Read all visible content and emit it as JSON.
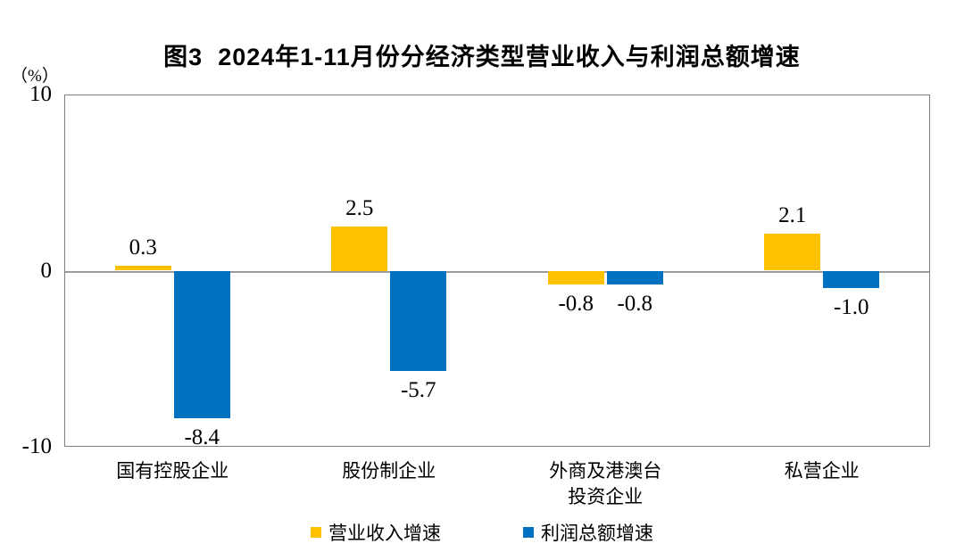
{
  "title": "图3  2024年1-11月份分经济类型营业收入与利润总额增速",
  "chart_data": {
    "type": "bar",
    "title": "图3  2024年1-11月份分经济类型营业收入与利润总额增速",
    "unit_label": "（%）",
    "categories": [
      "国有控股企业",
      "股份制企业",
      "外商及港澳台\n投资企业",
      "私营企业"
    ],
    "series": [
      {
        "key": "revenue-growth",
        "name": "营业收入增速",
        "color": "#FFC000",
        "values": [
          0.3,
          2.5,
          -0.8,
          2.1
        ],
        "labels": [
          "0.3",
          "2.5",
          "-0.8",
          "2.1"
        ]
      },
      {
        "key": "profit-growth",
        "name": "利润总额增速",
        "color": "#0070C0",
        "values": [
          -8.4,
          -5.7,
          -0.8,
          -1.0
        ],
        "labels": [
          "-8.4",
          "-5.7",
          "-0.8",
          "-1.0"
        ]
      }
    ],
    "ylim": [
      -10,
      10
    ],
    "yticks": [
      10,
      0,
      -10
    ],
    "grid": false,
    "legend_position": "bottom"
  }
}
